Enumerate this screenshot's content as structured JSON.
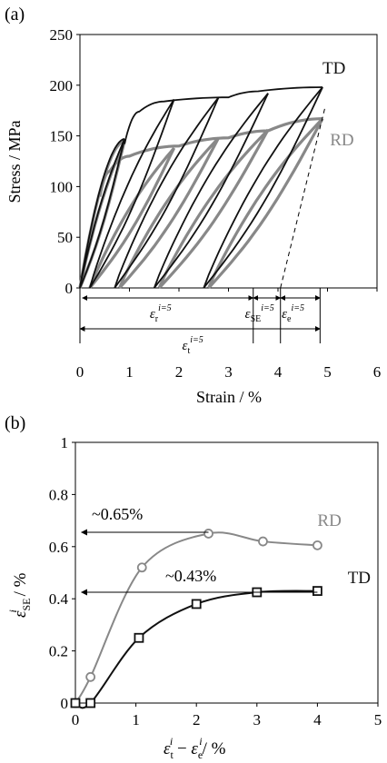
{
  "chart_data": [
    {
      "panel_label": "(a)",
      "type": "line",
      "xlabel": "Strain / %",
      "ylabel": "Stress / MPa",
      "xlim": [
        0,
        6
      ],
      "ylim": [
        0,
        250
      ],
      "xticks": [
        "0",
        "1",
        "2",
        "3",
        "4",
        "5",
        "6"
      ],
      "yticks": [
        "0",
        "50",
        "100",
        "150",
        "200",
        "250"
      ],
      "grid": false,
      "series": [
        {
          "name": "TD",
          "color": "#111111",
          "label_point": [
            4.9,
            217
          ],
          "loading_envelope": [
            [
              0.9,
              142
            ],
            [
              1.2,
              174
            ],
            [
              1.7,
              184
            ],
            [
              3.0,
              188
            ],
            [
              3.6,
              194
            ],
            [
              4.9,
              198
            ]
          ],
          "cycles": [
            {
              "start": 0.0,
              "end": 0.9,
              "peak": 147
            },
            {
              "start": 0.2,
              "end": 1.9,
              "peak": 186
            },
            {
              "start": 0.7,
              "end": 2.8,
              "peak": 188
            },
            {
              "start": 1.5,
              "end": 3.8,
              "peak": 192
            },
            {
              "start": 2.5,
              "end": 4.9,
              "peak": 198
            }
          ]
        },
        {
          "name": "RD",
          "color": "#888888",
          "label_point": [
            5.05,
            146
          ],
          "loading_envelope": [
            [
              0.4,
              90
            ],
            [
              0.6,
              115
            ],
            [
              1.0,
              130
            ],
            [
              2.0,
              140
            ],
            [
              3.0,
              148
            ],
            [
              3.8,
              155
            ],
            [
              4.9,
              167
            ]
          ],
          "cycles": [
            {
              "start": 0.0,
              "end": 0.9,
              "peak": 145
            },
            {
              "start": 0.2,
              "end": 1.9,
              "peak": 138
            },
            {
              "start": 0.8,
              "end": 2.8,
              "peak": 148
            },
            {
              "start": 1.6,
              "end": 3.8,
              "peak": 156
            },
            {
              "start": 2.6,
              "end": 4.9,
              "peak": 167
            }
          ]
        }
      ],
      "dashed_line": [
        [
          4.05,
          0
        ],
        [
          4.95,
          178
        ]
      ],
      "annotations": [
        {
          "label": "εr",
          "superscript": "i=5",
          "from": 0.05,
          "to": 3.5
        },
        {
          "label": "εSE",
          "superscript": "i=5",
          "from": 3.5,
          "to": 4.05
        },
        {
          "label": "εe",
          "superscript": "i=5",
          "from": 4.05,
          "to": 4.85
        },
        {
          "label": "εt",
          "superscript": "i=5",
          "from": 0.0,
          "to": 4.85
        }
      ]
    },
    {
      "panel_label": "(b)",
      "type": "line",
      "xlabel_main": "εt",
      "xlabel_sup1": "i",
      "xlabel_minus": "−",
      "xlabel_e": "εe",
      "xlabel_sup2": "i",
      "xlabel_unit": "/ %",
      "ylabel_main": "ε",
      "ylabel_sup": "i",
      "ylabel_sub": "SE",
      "ylabel_unit": "/ %",
      "xlim": [
        0,
        5
      ],
      "ylim": [
        0,
        1
      ],
      "xticks": [
        "0",
        "1",
        "2",
        "3",
        "4",
        "5"
      ],
      "yticks": [
        "0",
        "0.2",
        "0.4",
        "0.6",
        "0.8",
        "1"
      ],
      "grid": false,
      "series": [
        {
          "name": "RD",
          "color": "#888888",
          "marker": "circle",
          "x": [
            0,
            0.25,
            1.1,
            2.2,
            3.1,
            4.0
          ],
          "y": [
            0,
            0.1,
            0.52,
            0.65,
            0.62,
            0.605
          ]
        },
        {
          "name": "TD",
          "color": "#111111",
          "marker": "square",
          "x": [
            0,
            0.25,
            1.05,
            2.0,
            3.0,
            4.0
          ],
          "y": [
            0,
            0,
            0.25,
            0.38,
            0.425,
            0.43
          ]
        }
      ],
      "arrows": [
        {
          "label": "~0.65%",
          "y": 0.655,
          "from_x": 2.2,
          "to_x": 0.1
        },
        {
          "label": "~0.43%",
          "y": 0.425,
          "from_x": 4.0,
          "to_x": 0.1
        }
      ],
      "series_labels": [
        {
          "text": "RD",
          "x": 4.0,
          "y": 0.7
        },
        {
          "text": "TD",
          "x": 4.5,
          "y": 0.48
        }
      ]
    }
  ]
}
